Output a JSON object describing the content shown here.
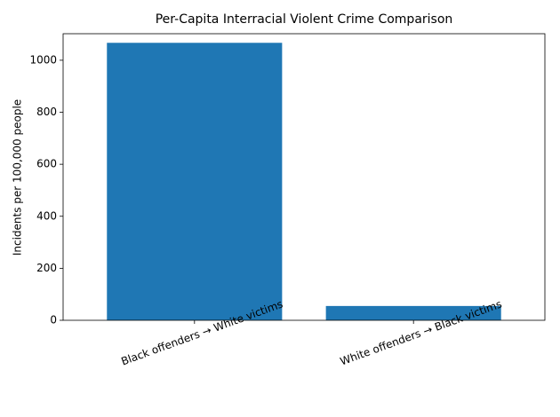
{
  "chart_data": {
    "type": "bar",
    "title": "Per-Capita Interracial Violent Crime Comparison",
    "ylabel": "Incidents per 100,000 people",
    "categories": [
      "Black offenders → White victims",
      "White offenders → Black victims"
    ],
    "values": [
      1067,
      55
    ],
    "color": "#1f77b4",
    "ylim": [
      0,
      1102
    ],
    "yticks": [
      0,
      200,
      400,
      600,
      800,
      1000
    ],
    "grid": false
  }
}
